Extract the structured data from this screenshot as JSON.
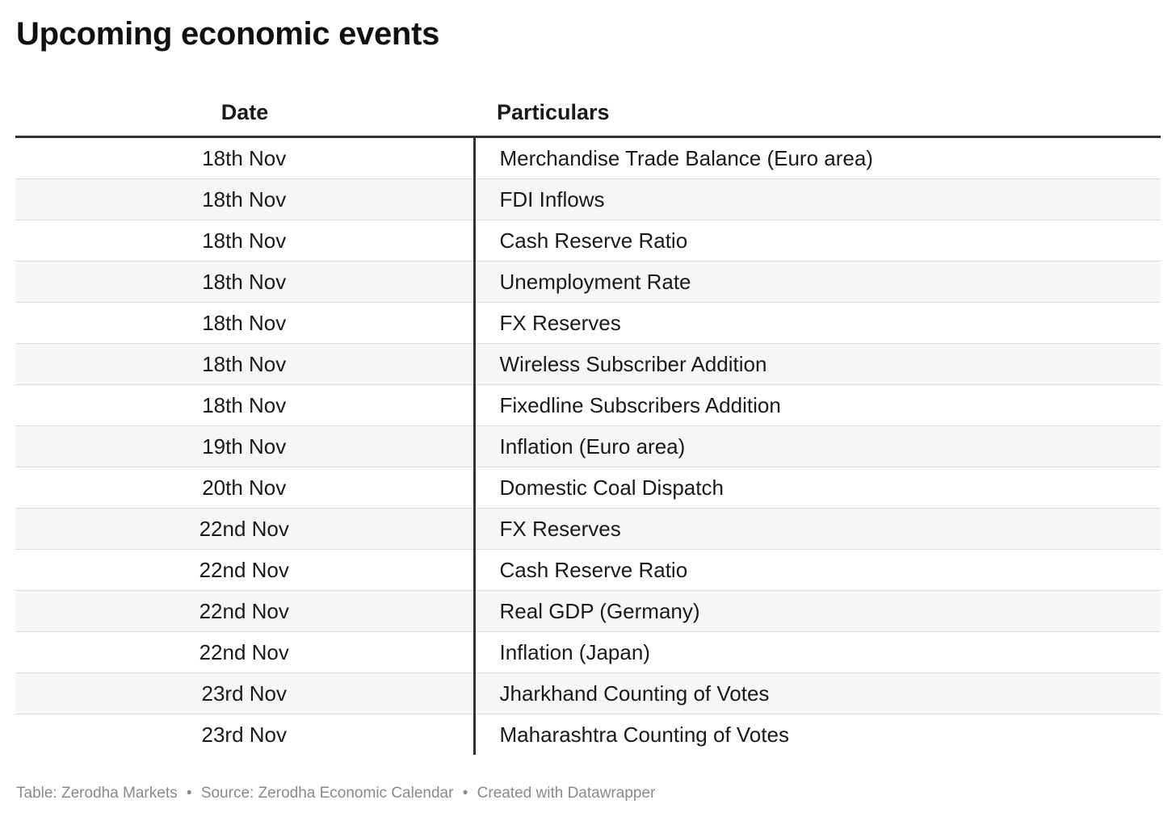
{
  "chart_data": {
    "type": "table",
    "title": "Upcoming economic events",
    "columns": [
      "Date",
      "Particulars"
    ],
    "rows": [
      [
        "18th Nov",
        "Merchandise Trade Balance (Euro area)"
      ],
      [
        "18th Nov",
        "FDI Inflows"
      ],
      [
        "18th Nov",
        "Cash Reserve Ratio"
      ],
      [
        "18th Nov",
        "Unemployment Rate"
      ],
      [
        "18th Nov",
        "FX Reserves"
      ],
      [
        "18th Nov",
        "Wireless Subscriber Addition"
      ],
      [
        "18th Nov",
        "Fixedline Subscribers Addition"
      ],
      [
        "19th Nov",
        "Inflation (Euro area)"
      ],
      [
        "20th Nov",
        "Domestic Coal Dispatch"
      ],
      [
        "22nd Nov",
        "FX Reserves"
      ],
      [
        "22nd Nov",
        "Cash Reserve Ratio"
      ],
      [
        "22nd Nov",
        "Real GDP (Germany)"
      ],
      [
        "22nd Nov",
        "Inflation (Japan)"
      ],
      [
        "23rd Nov",
        "Jharkhand Counting of Votes"
      ],
      [
        "23rd Nov",
        "Maharashtra Counting of Votes"
      ]
    ]
  },
  "footer": {
    "table_credit": "Table: Zerodha Markets",
    "source": "Source: Zerodha Economic Calendar",
    "created_with": "Created with Datawrapper",
    "separator": "•"
  }
}
